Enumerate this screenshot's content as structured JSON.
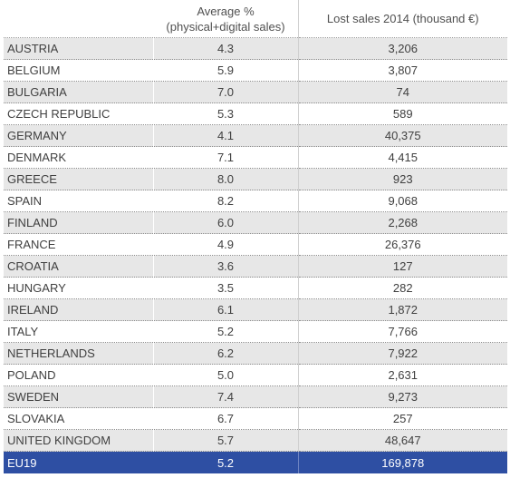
{
  "table": {
    "headers": {
      "country": "",
      "avg_line1": "Average %",
      "avg_line2": "(physical+digital sales)",
      "lost": "Lost sales 2014 (thousand €)"
    },
    "rows": [
      {
        "country": "AUSTRIA",
        "avg": "4.3",
        "lost": "3,206"
      },
      {
        "country": "BELGIUM",
        "avg": "5.9",
        "lost": "3,807"
      },
      {
        "country": "BULGARIA",
        "avg": "7.0",
        "lost": "74"
      },
      {
        "country": "CZECH REPUBLIC",
        "avg": "5.3",
        "lost": "589"
      },
      {
        "country": "GERMANY",
        "avg": "4.1",
        "lost": "40,375"
      },
      {
        "country": "DENMARK",
        "avg": "7.1",
        "lost": "4,415"
      },
      {
        "country": "GREECE",
        "avg": "8.0",
        "lost": "923"
      },
      {
        "country": "SPAIN",
        "avg": "8.2",
        "lost": "9,068"
      },
      {
        "country": "FINLAND",
        "avg": "6.0",
        "lost": "2,268"
      },
      {
        "country": "FRANCE",
        "avg": "4.9",
        "lost": "26,376"
      },
      {
        "country": "CROATIA",
        "avg": "3.6",
        "lost": "127"
      },
      {
        "country": "HUNGARY",
        "avg": "3.5",
        "lost": "282"
      },
      {
        "country": "IRELAND",
        "avg": "6.1",
        "lost": "1,872"
      },
      {
        "country": "ITALY",
        "avg": "5.2",
        "lost": "7,766"
      },
      {
        "country": "NETHERLANDS",
        "avg": "6.2",
        "lost": "7,922"
      },
      {
        "country": "POLAND",
        "avg": "5.0",
        "lost": "2,631"
      },
      {
        "country": "SWEDEN",
        "avg": "7.4",
        "lost": "9,273"
      },
      {
        "country": "SLOVAKIA",
        "avg": "6.7",
        "lost": "257"
      },
      {
        "country": "UNITED KINGDOM",
        "avg": "5.7",
        "lost": "48,647"
      }
    ],
    "total": {
      "country": "EU19",
      "avg": "5.2",
      "lost": "169,878"
    }
  },
  "colors": {
    "total_row_bg": "#2e4fa3",
    "stripe_bg": "#e7e7e7",
    "text": "#404040"
  }
}
